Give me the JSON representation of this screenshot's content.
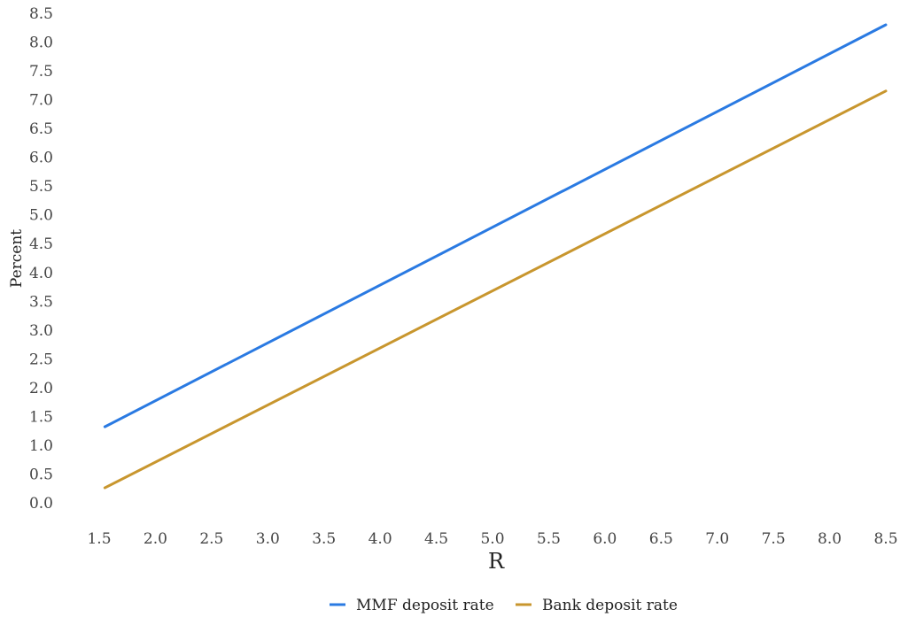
{
  "chart_data": {
    "type": "line",
    "title": "",
    "xlabel": "R",
    "ylabel": "Percent",
    "xlim": [
      1.5,
      8.5
    ],
    "ylim": [
      0.0,
      8.5
    ],
    "x_ticks": [
      "1.5",
      "2.0",
      "2.5",
      "3.0",
      "3.5",
      "4.0",
      "4.5",
      "5.0",
      "5.5",
      "6.0",
      "6.5",
      "7.0",
      "7.5",
      "8.0",
      "8.5"
    ],
    "y_ticks": [
      "0.0",
      "0.5",
      "1.0",
      "1.5",
      "2.0",
      "2.5",
      "3.0",
      "3.5",
      "4.0",
      "4.5",
      "5.0",
      "5.5",
      "6.0",
      "6.5",
      "7.0",
      "7.5",
      "8.0",
      "8.5"
    ],
    "grid": false,
    "legend_position": "bottom-center",
    "series": [
      {
        "name": "MMF deposit rate",
        "color": "#2a7ae2",
        "x": [
          1.55,
          8.5
        ],
        "y": [
          1.32,
          8.3
        ]
      },
      {
        "name": "Bank deposit rate",
        "color": "#c8962e",
        "x": [
          1.55,
          8.5
        ],
        "y": [
          0.26,
          7.15
        ]
      }
    ]
  }
}
